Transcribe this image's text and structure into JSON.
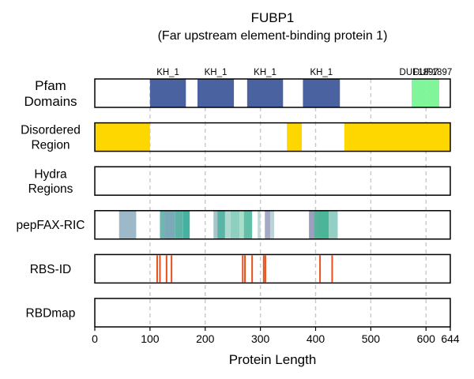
{
  "chart_data": {
    "type": "bar",
    "title": "FUBP1",
    "subtitle": "(Far upstream element-binding protein 1)",
    "xlabel": "Protein Length",
    "xlim": [
      0,
      644
    ],
    "xticks": [
      0,
      100,
      200,
      300,
      400,
      500,
      600,
      644
    ],
    "grid_x": [
      100,
      200,
      300,
      400,
      500,
      600
    ],
    "tracks": [
      {
        "name": "Pfam\nDomains",
        "segments": [
          {
            "start": 100,
            "end": 165,
            "label": "KH_1",
            "color": "#4a62a0"
          },
          {
            "start": 186,
            "end": 252,
            "label": "KH_1",
            "color": "#4a62a0"
          },
          {
            "start": 276,
            "end": 341,
            "label": "KH_1",
            "color": "#4a62a0"
          },
          {
            "start": 377,
            "end": 444,
            "label": "KH_1",
            "color": "#4a62a0"
          },
          {
            "start": 574,
            "end": 600,
            "label": "DUF1897",
            "color": "#80f59a"
          },
          {
            "start": 600,
            "end": 624,
            "label": "DUF1897",
            "color": "#80f59a"
          }
        ]
      },
      {
        "name": "Disordered\nRegion",
        "segments": [
          {
            "start": 0,
            "end": 100,
            "color": "#ffd700"
          },
          {
            "start": 348,
            "end": 375,
            "color": "#ffd700"
          },
          {
            "start": 452,
            "end": 644,
            "color": "#ffd700"
          }
        ]
      },
      {
        "name": "Hydra\nRegions",
        "segments": []
      },
      {
        "name": "pepFAX-RIC",
        "segments": [
          {
            "start": 44,
            "end": 75,
            "color": "#9db9c9"
          },
          {
            "start": 118,
            "end": 126,
            "color": "#6bb8b0"
          },
          {
            "start": 126,
            "end": 145,
            "color": "#7aa9b8"
          },
          {
            "start": 145,
            "end": 160,
            "color": "#5fb3a5"
          },
          {
            "start": 160,
            "end": 172,
            "color": "#48b0a0"
          },
          {
            "start": 215,
            "end": 222,
            "color": "#a7c4c9"
          },
          {
            "start": 222,
            "end": 236,
            "color": "#5ab5a7"
          },
          {
            "start": 236,
            "end": 246,
            "color": "#b0d8d0"
          },
          {
            "start": 246,
            "end": 262,
            "color": "#8fcfc0"
          },
          {
            "start": 262,
            "end": 270,
            "color": "#aaddc8"
          },
          {
            "start": 270,
            "end": 285,
            "color": "#63c0a8"
          },
          {
            "start": 295,
            "end": 300,
            "color": "#c0d8dc"
          },
          {
            "start": 308,
            "end": 318,
            "color": "#a3a9c6"
          },
          {
            "start": 318,
            "end": 325,
            "color": "#bcd4d8"
          },
          {
            "start": 388,
            "end": 397,
            "color": "#9a9fbf"
          },
          {
            "start": 397,
            "end": 405,
            "color": "#56b39a"
          },
          {
            "start": 405,
            "end": 424,
            "color": "#4bb59a"
          },
          {
            "start": 424,
            "end": 440,
            "color": "#94cfc6"
          }
        ]
      },
      {
        "name": "RBS-ID",
        "lines": [
          113,
          118,
          130,
          139,
          268,
          272,
          285,
          306,
          309,
          408,
          430
        ],
        "color": "#e8501c"
      },
      {
        "name": "RBDmap",
        "segments": []
      }
    ]
  }
}
